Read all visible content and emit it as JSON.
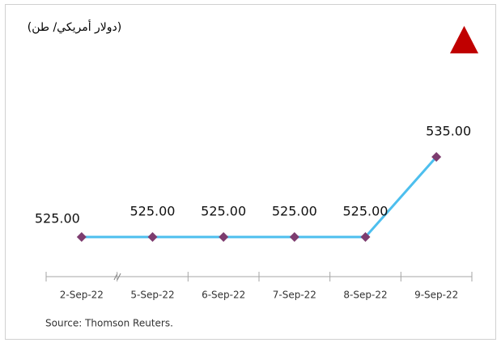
{
  "chart_data": {
    "type": "line",
    "title": "(دولار أمريكي/ طن)",
    "categories": [
      "2-Sep-22",
      "5-Sep-22",
      "6-Sep-22",
      "7-Sep-22",
      "8-Sep-22",
      "9-Sep-22"
    ],
    "series": [
      {
        "color": "#4dbfee",
        "values": [
          525,
          525,
          525,
          525,
          525,
          535
        ],
        "value_labels": [
          "525.00",
          "525.00",
          "525.00",
          "525.00",
          "525.00",
          "535.00"
        ]
      }
    ],
    "marker_color": "#7d3c6f",
    "source": "Source: Thomson Reuters."
  }
}
